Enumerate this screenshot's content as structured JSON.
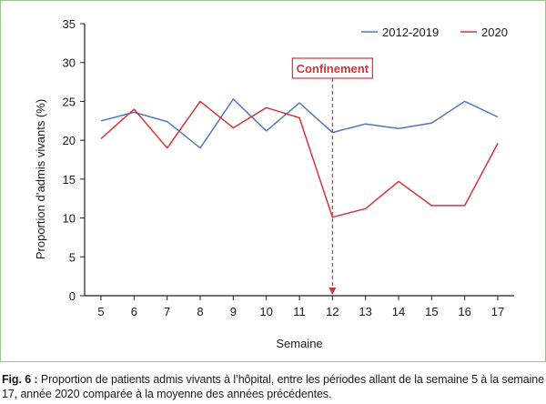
{
  "chart_data": {
    "type": "line",
    "x": [
      5,
      6,
      7,
      8,
      9,
      10,
      11,
      12,
      13,
      14,
      15,
      16,
      17
    ],
    "series": [
      {
        "name": "2012-2019",
        "color": "#4f78be",
        "values": [
          22.5,
          23.6,
          22.4,
          19.0,
          25.3,
          21.2,
          24.8,
          21.0,
          22.1,
          21.5,
          22.2,
          25.0,
          23.0
        ]
      },
      {
        "name": "2020",
        "color": "#d1353a",
        "values": [
          20.2,
          24.0,
          19.0,
          25.0,
          21.6,
          24.2,
          22.9,
          10.1,
          11.2,
          14.7,
          11.6,
          11.6,
          19.6
        ]
      }
    ],
    "xlabel": "Semaine",
    "ylabel": "Proportion d’admis vivants (%)",
    "ylim": [
      0,
      35
    ],
    "yticks": [
      0,
      5,
      10,
      15,
      20,
      25,
      30,
      35
    ],
    "grid": false,
    "legend_position": "top-right",
    "annotation": {
      "label": "Confinement",
      "x": 12,
      "color": "#d1353a"
    }
  },
  "caption": {
    "label": "Fig. 6 :",
    "text": " Proportion de patients admis vivants à l’hôpital, entre les périodes allant de la semaine 5 à la semaine 17, année 2020 comparée à la moyenne des années précédentes."
  }
}
